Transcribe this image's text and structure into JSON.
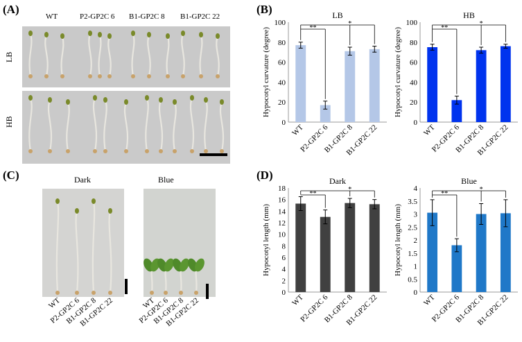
{
  "panels": {
    "a": "(A)",
    "b": "(B)",
    "c": "(C)",
    "d": "(D)"
  },
  "panel_a": {
    "genotypes": [
      "WT",
      "P2-GP2C 6",
      "B1-GP2C 8",
      "B1-GP2C 22"
    ],
    "rows": [
      "LB",
      "HB"
    ]
  },
  "panel_c": {
    "conditions": [
      "Dark",
      "Blue"
    ],
    "genotypes": [
      "WT",
      "P2-GP2C 6",
      "B1-GP2C 8",
      "B1-GP2C 22"
    ]
  },
  "colors": {
    "lb": "#b4c7e7",
    "hb": "#0033ee",
    "dark": "#404040",
    "blue": "#1f78c8",
    "seedling_stem": "#e8e6df",
    "cotyledon": "#7a8a2a",
    "seed": "#c8a26a"
  },
  "significance": {
    "strong": "**",
    "weak": "*"
  },
  "chart_data": [
    {
      "id": "chart-b-lb",
      "type": "bar",
      "title": "LB",
      "ylabel": "Hypocotyl curvature (degree)",
      "categories": [
        "WT",
        "P2-GP2C 6",
        "B1-GP2C 8",
        "B1-GP2C 22"
      ],
      "values": [
        77,
        17,
        71,
        73
      ],
      "errors": [
        3,
        4,
        4,
        3
      ],
      "ylim": [
        0,
        100
      ],
      "yticks": [
        0,
        20,
        40,
        60,
        80,
        100
      ],
      "color": "#b4c7e7"
    },
    {
      "id": "chart-b-hb",
      "type": "bar",
      "title": "HB",
      "ylabel": "Hypocotyl curvature (degree)",
      "categories": [
        "WT",
        "P2-GP2C 6",
        "B1-GP2C 8",
        "B1-GP2C 22"
      ],
      "values": [
        75,
        22,
        72,
        76
      ],
      "errors": [
        3,
        4,
        3,
        2
      ],
      "ylim": [
        0,
        100
      ],
      "yticks": [
        0,
        20,
        40,
        60,
        80,
        100
      ],
      "color": "#0033ee"
    },
    {
      "id": "chart-d-dark",
      "type": "bar",
      "title": "Dark",
      "ylabel": "Hypocotyl length (mm)",
      "categories": [
        "WT",
        "P2-GP2C 6",
        "B1-GP2C 8",
        "B1-GP2C 22"
      ],
      "values": [
        15.3,
        13.0,
        15.4,
        15.2
      ],
      "errors": [
        1.2,
        1.2,
        0.8,
        0.8
      ],
      "ylim": [
        0,
        18
      ],
      "yticks": [
        0,
        2,
        4,
        6,
        8,
        10,
        12,
        14,
        16,
        18
      ],
      "color": "#404040"
    },
    {
      "id": "chart-d-blue",
      "type": "bar",
      "title": "Blue",
      "ylabel": "Hypocotyl length (mm)",
      "categories": [
        "WT",
        "P2-GP2C 6",
        "B1-GP2C 8",
        "B1-GP2C 22"
      ],
      "values": [
        3.05,
        1.8,
        3.0,
        3.03
      ],
      "errors": [
        0.5,
        0.25,
        0.4,
        0.52
      ],
      "ylim": [
        0,
        4
      ],
      "yticks": [
        0,
        0.5,
        1,
        1.5,
        2,
        2.5,
        3,
        3.5,
        4
      ],
      "color": "#1f78c8"
    }
  ]
}
